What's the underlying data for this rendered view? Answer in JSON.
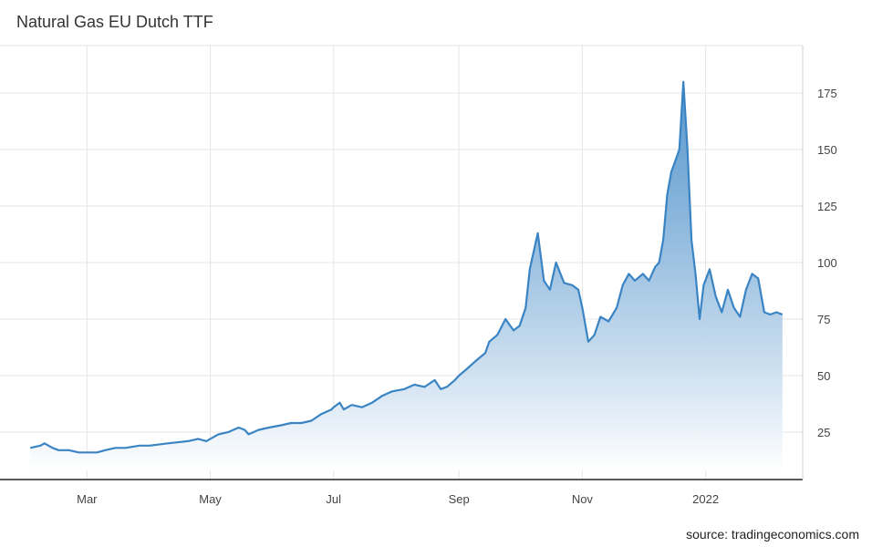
{
  "title": "Natural Gas EU Dutch TTF",
  "source": "source: tradingeconomics.com",
  "colors": {
    "line": "#3a84c4",
    "fillTop": "#3a84c4",
    "fillBottom": "#ffffff",
    "grid": "#e6e6e6",
    "axis": "#222222"
  },
  "chart_data": {
    "type": "area",
    "title": "Natural Gas EU Dutch TTF",
    "xlabel": "",
    "ylabel": "",
    "grid": true,
    "legend": "none",
    "x_ticks": [
      "Mar",
      "May",
      "Jul",
      "Sep",
      "Nov",
      "2022"
    ],
    "y_ticks": [
      25,
      50,
      75,
      100,
      125,
      150,
      175
    ],
    "ylim": [
      4,
      196
    ],
    "x": [
      "2021-02-01",
      "2021-02-06",
      "2021-02-08",
      "2021-02-12",
      "2021-02-15",
      "2021-02-20",
      "2021-02-25",
      "2021-03-01",
      "2021-03-06",
      "2021-03-10",
      "2021-03-15",
      "2021-03-20",
      "2021-03-27",
      "2021-04-01",
      "2021-04-10",
      "2021-04-20",
      "2021-04-25",
      "2021-04-29",
      "2021-05-05",
      "2021-05-10",
      "2021-05-15",
      "2021-05-18",
      "2021-05-20",
      "2021-05-25",
      "2021-05-30",
      "2021-06-05",
      "2021-06-10",
      "2021-06-15",
      "2021-06-20",
      "2021-06-25",
      "2021-06-30",
      "2021-07-01",
      "2021-07-04",
      "2021-07-06",
      "2021-07-10",
      "2021-07-15",
      "2021-07-20",
      "2021-07-25",
      "2021-07-30",
      "2021-08-05",
      "2021-08-10",
      "2021-08-15",
      "2021-08-20",
      "2021-08-23",
      "2021-08-26",
      "2021-08-30",
      "2021-09-01",
      "2021-09-05",
      "2021-09-10",
      "2021-09-14",
      "2021-09-16",
      "2021-09-20",
      "2021-09-24",
      "2021-09-28",
      "2021-10-01",
      "2021-10-04",
      "2021-10-06",
      "2021-10-10",
      "2021-10-13",
      "2021-10-16",
      "2021-10-19",
      "2021-10-23",
      "2021-10-27",
      "2021-10-30",
      "2021-11-01",
      "2021-11-04",
      "2021-11-07",
      "2021-11-10",
      "2021-11-14",
      "2021-11-18",
      "2021-11-21",
      "2021-11-24",
      "2021-11-27",
      "2021-12-01",
      "2021-12-04",
      "2021-12-07",
      "2021-12-09",
      "2021-12-11",
      "2021-12-13",
      "2021-12-15",
      "2021-12-17",
      "2021-12-19",
      "2021-12-21",
      "2021-12-23",
      "2021-12-25",
      "2021-12-27",
      "2021-12-29",
      "2021-12-31",
      "2022-01-03",
      "2022-01-06",
      "2022-01-09",
      "2022-01-12",
      "2022-01-15",
      "2022-01-18",
      "2022-01-21",
      "2022-01-24",
      "2022-01-27",
      "2022-01-30",
      "2022-02-02",
      "2022-02-05",
      "2022-02-08"
    ],
    "series": [
      {
        "values": [
          18,
          19,
          20,
          18,
          17,
          17,
          16,
          16,
          16,
          17,
          18,
          18,
          19,
          19,
          20,
          21,
          22,
          21,
          24,
          25,
          27,
          26,
          24,
          26,
          27,
          28,
          29,
          29,
          30,
          33,
          35,
          36,
          38,
          35,
          37,
          36,
          38,
          41,
          43,
          44,
          46,
          45,
          48,
          44,
          45,
          48,
          50,
          53,
          57,
          60,
          65,
          68,
          75,
          70,
          72,
          80,
          97,
          113,
          92,
          88,
          100,
          91,
          90,
          88,
          80,
          65,
          68,
          76,
          74,
          80,
          90,
          95,
          92,
          95,
          92,
          98,
          100,
          110,
          130,
          140,
          145,
          150,
          180,
          150,
          110,
          95,
          75,
          90,
          97,
          85,
          78,
          88,
          80,
          76,
          88,
          95,
          93,
          78,
          77,
          78,
          77
        ]
      }
    ]
  }
}
